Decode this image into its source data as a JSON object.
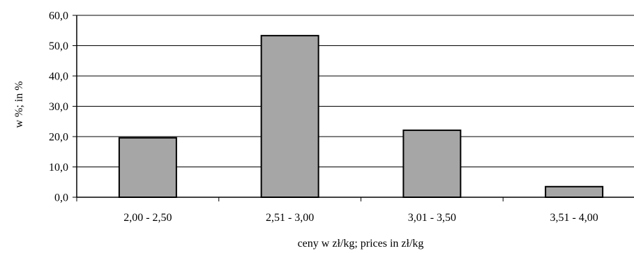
{
  "chart_data": {
    "type": "bar",
    "categories": [
      "2,00 - 2,50",
      "2,51 - 3,00",
      "3,01 - 3,50",
      "3,51 - 4,00"
    ],
    "values": [
      19.6,
      53.3,
      22.1,
      3.5
    ],
    "yticks": [
      "0,0",
      "10,0",
      "20,0",
      "30,0",
      "40,0",
      "50,0",
      "60,0"
    ],
    "ylim": [
      0,
      60
    ],
    "xlabel": "ceny w zł/kg; prices in zł/kg",
    "ylabel": "w %; in %",
    "grid": true,
    "legend": "none",
    "colors": {
      "bar_fill": "#a6a6a6",
      "bar_stroke": "#000000",
      "grid": "#000000"
    }
  }
}
